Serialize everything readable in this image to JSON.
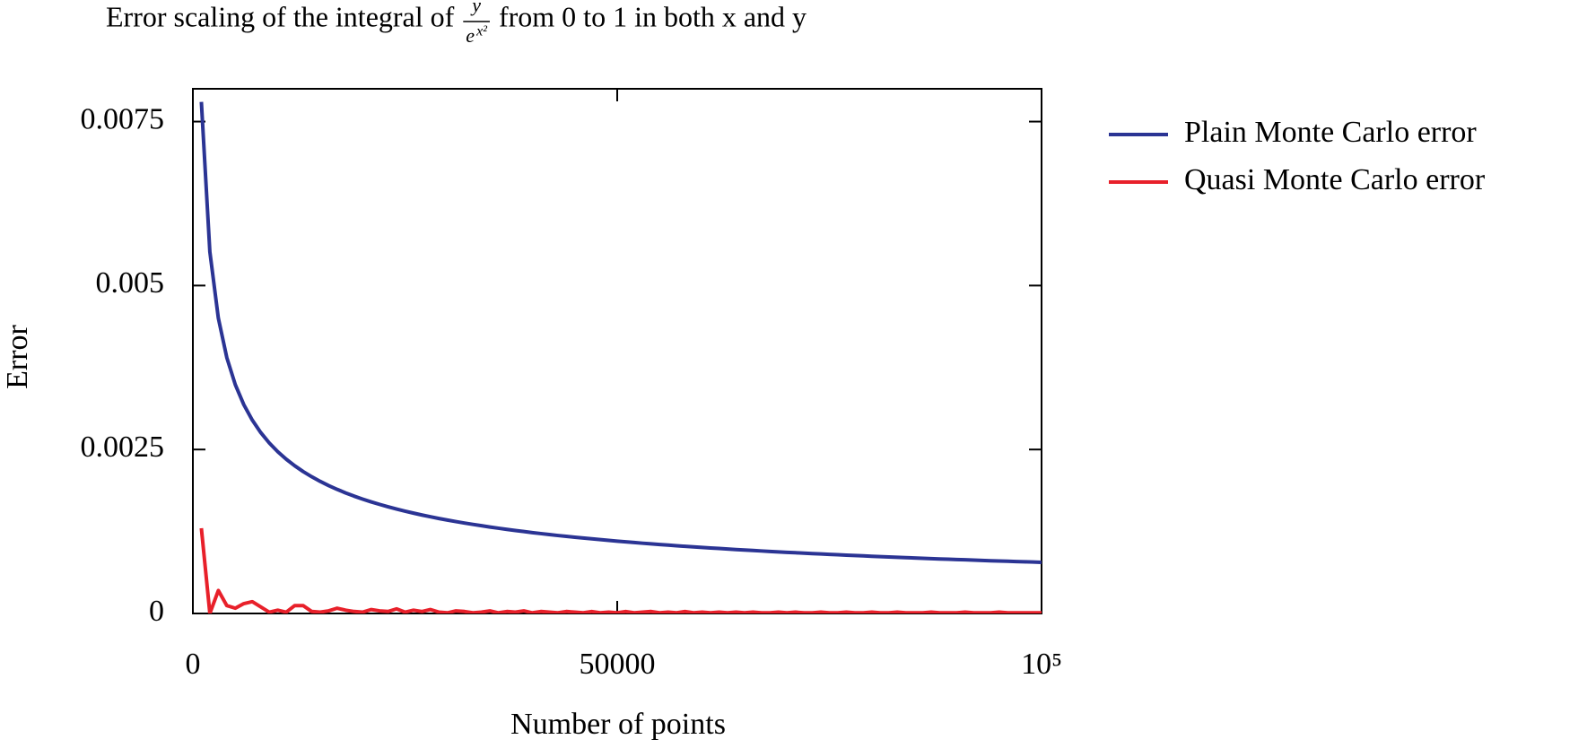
{
  "chart_data": {
    "type": "line",
    "title_before": "Error scaling of the integral of",
    "title_fraction": {
      "numerator": "y",
      "denominator": "e",
      "denominator_power": "x²"
    },
    "title_after": "from 0 to 1 in both x and y",
    "xlabel": "Number of points",
    "ylabel": "Error",
    "x": [
      1000,
      2000,
      3000,
      4000,
      5000,
      6000,
      7000,
      8000,
      9000,
      10000,
      11000,
      12000,
      13000,
      14000,
      15000,
      16000,
      17000,
      18000,
      19000,
      20000,
      21000,
      22000,
      23000,
      24000,
      25000,
      26000,
      27000,
      28000,
      29000,
      30000,
      31000,
      32000,
      33000,
      34000,
      35000,
      36000,
      37000,
      38000,
      39000,
      40000,
      41000,
      42000,
      43000,
      44000,
      45000,
      46000,
      47000,
      48000,
      49000,
      50000,
      51000,
      52000,
      53000,
      54000,
      55000,
      56000,
      57000,
      58000,
      59000,
      60000,
      61000,
      62000,
      63000,
      64000,
      65000,
      66000,
      67000,
      68000,
      69000,
      70000,
      71000,
      72000,
      73000,
      74000,
      75000,
      76000,
      77000,
      78000,
      79000,
      80000,
      81000,
      82000,
      83000,
      84000,
      85000,
      86000,
      87000,
      88000,
      89000,
      90000,
      91000,
      92000,
      93000,
      94000,
      95000,
      96000,
      97000,
      98000,
      99000,
      100000
    ],
    "series": [
      {
        "name": "Plain Monte Carlo error",
        "color": "#2b3494",
        "values": [
          0.0078,
          0.005515,
          0.004503,
          0.0039,
          0.003488,
          0.003184,
          0.002948,
          0.002758,
          0.0026,
          0.002467,
          0.002352,
          0.002252,
          0.002163,
          0.002085,
          0.002014,
          0.00195,
          0.001892,
          0.001838,
          0.001789,
          0.001744,
          0.001702,
          0.001663,
          0.001626,
          0.001592,
          0.00156,
          0.00153,
          0.001501,
          0.001474,
          0.001448,
          0.001424,
          0.001401,
          0.001379,
          0.001358,
          0.001338,
          0.001318,
          0.0013,
          0.001282,
          0.001265,
          0.001249,
          0.001233,
          0.001218,
          0.001204,
          0.001189,
          0.001176,
          0.001163,
          0.00115,
          0.001138,
          0.001126,
          0.001114,
          0.001103,
          0.001092,
          0.001082,
          0.001071,
          0.001061,
          0.001052,
          0.001042,
          0.001033,
          0.001024,
          0.001015,
          0.001007,
          0.000999,
          0.000991,
          0.000983,
          0.000975,
          0.000967,
          0.00096,
          0.000953,
          0.000946,
          0.000939,
          0.000932,
          0.000926,
          0.000919,
          0.000913,
          0.000907,
          0.000901,
          0.000895,
          0.000889,
          0.000883,
          0.000878,
          0.000872,
          0.000867,
          0.000861,
          0.000856,
          0.000851,
          0.000846,
          0.000841,
          0.000836,
          0.000831,
          0.000827,
          0.000822,
          0.000818,
          0.000813,
          0.000809,
          0.000804,
          0.0008,
          0.000796,
          0.000792,
          0.000788,
          0.000784,
          0.00078
        ]
      },
      {
        "name": "Quasi Monte Carlo error",
        "color": "#e8202a",
        "values": [
          0.0013,
          0.0,
          0.00035,
          0.00012,
          8e-05,
          0.00015,
          0.00018,
          0.0001,
          2e-05,
          5e-05,
          2e-05,
          0.00012,
          0.00012,
          3e-05,
          2e-05,
          4e-05,
          8e-05,
          5e-05,
          3e-05,
          2e-05,
          6e-05,
          4e-05,
          3e-05,
          7e-05,
          2e-05,
          5e-05,
          3e-05,
          6e-05,
          2e-05,
          1e-05,
          4e-05,
          3e-05,
          1e-05,
          2e-05,
          4e-05,
          1e-05,
          3e-05,
          2e-05,
          4e-05,
          1e-05,
          3e-05,
          2e-05,
          1e-05,
          3e-05,
          2e-05,
          1e-05,
          3e-05,
          1e-05,
          2e-05,
          1e-05,
          3e-05,
          1e-05,
          2e-05,
          3e-05,
          1e-05,
          2e-05,
          1e-05,
          3e-05,
          1e-05,
          2e-05,
          1e-05,
          2e-05,
          1e-05,
          2e-05,
          1e-05,
          2e-05,
          1e-05,
          1e-05,
          2e-05,
          1e-05,
          2e-05,
          1e-05,
          1e-05,
          2e-05,
          1e-05,
          1e-05,
          2e-05,
          1e-05,
          1e-05,
          2e-05,
          1e-05,
          1e-05,
          2e-05,
          1e-05,
          1e-05,
          1e-05,
          2e-05,
          1e-05,
          1e-05,
          1e-05,
          2e-05,
          1e-05,
          1e-05,
          1e-05,
          2e-05,
          1e-05,
          1e-05,
          1e-05,
          1e-05,
          1e-05
        ]
      }
    ],
    "xlim": [
      0,
      100000
    ],
    "xticks": [
      0,
      50000,
      {
        "value": 100000,
        "label": "10⁵"
      }
    ],
    "ylim": [
      0,
      0.008
    ],
    "yticks": [
      0,
      0.0025,
      0.005,
      0.0075
    ],
    "legend": "outside-right"
  }
}
